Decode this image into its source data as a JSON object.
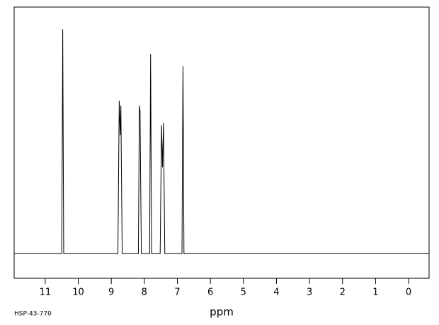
{
  "chart_data": {
    "type": "line",
    "x_label": "ppm",
    "footnote": "HSP-43-770",
    "color": "#000000",
    "x": [
      11.94,
      10.5,
      10.48,
      10.47,
      10.44,
      8.8,
      8.76,
      8.73,
      8.71,
      8.67,
      8.18,
      8.15,
      8.13,
      8.09,
      7.84,
      7.81,
      7.78,
      7.52,
      7.48,
      7.45,
      7.42,
      7.38,
      6.86,
      6.83,
      6.8,
      -0.62
    ],
    "values": [
      0,
      0,
      55,
      91,
      0,
      0,
      62,
      48,
      60,
      0,
      0,
      60,
      58,
      0,
      0,
      81,
      0,
      0,
      52,
      35,
      53,
      0,
      0,
      76,
      0,
      0
    ],
    "xlim": [
      11.94,
      -0.62
    ],
    "xticks": [
      11,
      10,
      9,
      8,
      7,
      6,
      5,
      4,
      3,
      2,
      1,
      0
    ],
    "ylim": [
      -10,
      100
    ]
  }
}
